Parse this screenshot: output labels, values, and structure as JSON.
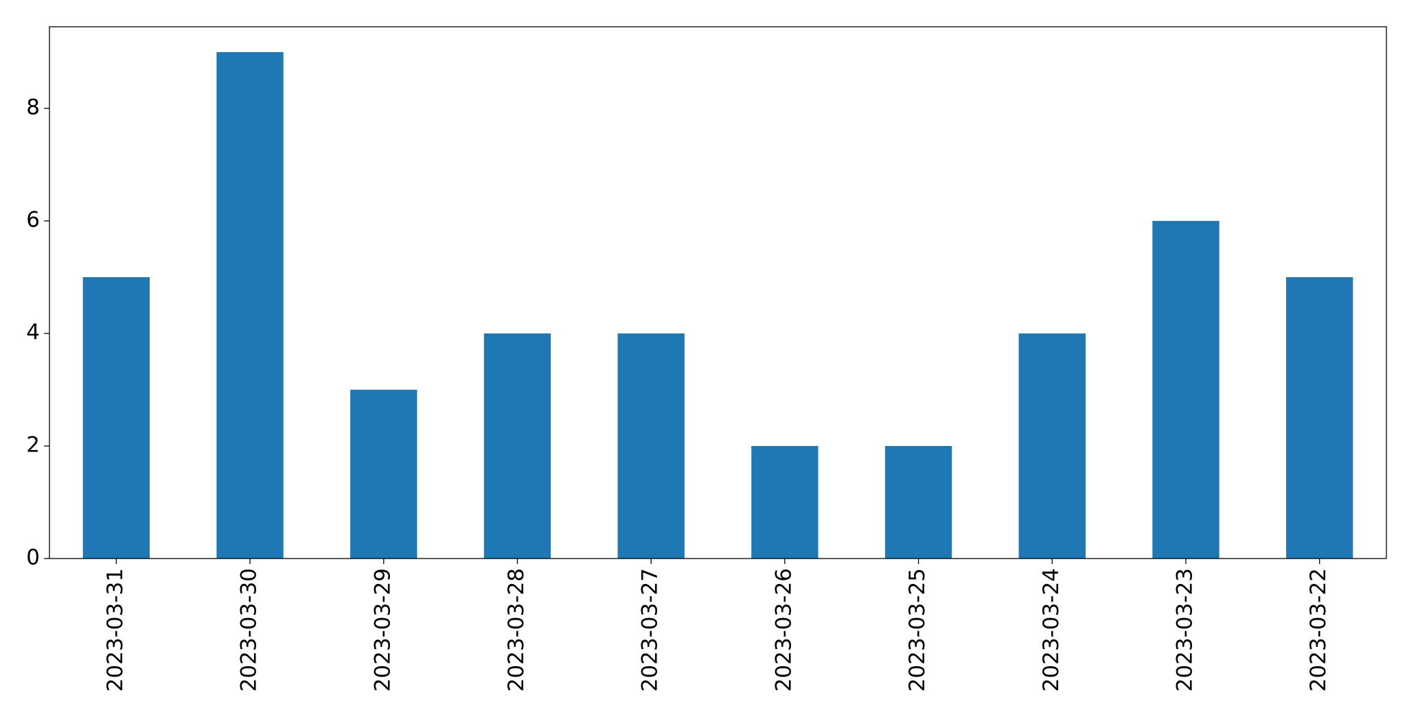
{
  "chart_data": {
    "type": "bar",
    "categories": [
      "2023-03-31",
      "2023-03-30",
      "2023-03-29",
      "2023-03-28",
      "2023-03-27",
      "2023-03-26",
      "2023-03-25",
      "2023-03-24",
      "2023-03-23",
      "2023-03-22"
    ],
    "values": [
      5,
      9,
      3,
      4,
      4,
      2,
      2,
      4,
      6,
      5
    ],
    "color": "#1f77b4",
    "ylim": [
      0,
      9.45
    ],
    "yticks": [
      0,
      2,
      4,
      6,
      8
    ],
    "grid": false
  }
}
